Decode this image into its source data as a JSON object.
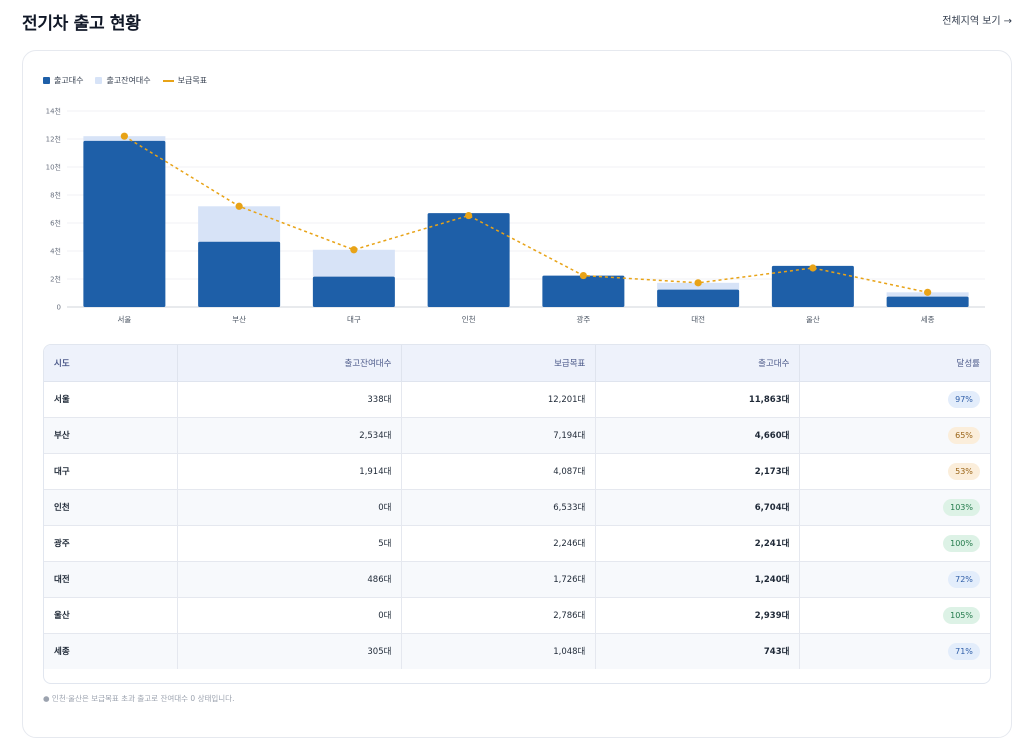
{
  "header": {
    "title": "전기차 출고 현황",
    "view_all": "전체지역 보기",
    "view_all_icon": "arrow-right-icon"
  },
  "legend": [
    {
      "label": "출고대수",
      "color": "#1e5fa8",
      "kind": "bar"
    },
    {
      "label": "출고잔여대수",
      "color": "#d7e3f7",
      "kind": "bar"
    },
    {
      "label": "보급목표",
      "color": "#e8a317",
      "kind": "line"
    }
  ],
  "chart_data": {
    "type": "bar",
    "stacked": true,
    "categories": [
      "서울",
      "부산",
      "대구",
      "인천",
      "광주",
      "대전",
      "울산",
      "세종"
    ],
    "series": [
      {
        "name": "출고대수",
        "type": "bar",
        "color": "#1e5fa8",
        "values": [
          11863,
          4660,
          2173,
          6704,
          2241,
          1240,
          2939,
          743
        ]
      },
      {
        "name": "출고잔여대수",
        "type": "bar",
        "color": "#d7e3f7",
        "values": [
          338,
          2534,
          1914,
          0,
          5,
          486,
          0,
          305
        ]
      },
      {
        "name": "보급목표",
        "type": "line",
        "color": "#e8a317",
        "values": [
          12201,
          7194,
          4087,
          6533,
          2246,
          1726,
          2786,
          1048
        ]
      }
    ],
    "yticks": [
      "0",
      "2천",
      "4천",
      "6천",
      "8천",
      "10천",
      "12천",
      "14천"
    ],
    "ylim": [
      0,
      14000
    ],
    "grid": true,
    "legend_position": "top-left"
  },
  "table": {
    "headers": [
      "시도",
      "출고잔여대수",
      "보급목표",
      "출고대수",
      "달성률"
    ],
    "rows": [
      {
        "name": "서울",
        "remain": "338대",
        "target": "12,201대",
        "shipped": "11,863대",
        "rate": "97%",
        "rate_tone": "blue"
      },
      {
        "name": "부산",
        "remain": "2,534대",
        "target": "7,194대",
        "shipped": "4,660대",
        "rate": "65%",
        "rate_tone": "orange"
      },
      {
        "name": "대구",
        "remain": "1,914대",
        "target": "4,087대",
        "shipped": "2,173대",
        "rate": "53%",
        "rate_tone": "orange"
      },
      {
        "name": "인천",
        "remain": "0대",
        "target": "6,533대",
        "shipped": "6,704대",
        "rate": "103%",
        "rate_tone": "green"
      },
      {
        "name": "광주",
        "remain": "5대",
        "target": "2,246대",
        "shipped": "2,241대",
        "rate": "100%",
        "rate_tone": "green"
      },
      {
        "name": "대전",
        "remain": "486대",
        "target": "1,726대",
        "shipped": "1,240대",
        "rate": "72%",
        "rate_tone": "blue"
      },
      {
        "name": "울산",
        "remain": "0대",
        "target": "2,786대",
        "shipped": "2,939대",
        "rate": "105%",
        "rate_tone": "green"
      },
      {
        "name": "세종",
        "remain": "305대",
        "target": "1,048대",
        "shipped": "743대",
        "rate": "71%",
        "rate_tone": "blue"
      }
    ]
  },
  "badge_colors": {
    "blue": {
      "bg": "#e3edfb",
      "fg": "#2f5ea8"
    },
    "orange": {
      "bg": "#fbeedb",
      "fg": "#9a6416"
    },
    "green": {
      "bg": "#ddf2e6",
      "fg": "#237a4b"
    }
  },
  "footnote": "● 인천·울산은 보급목표 초과 출고로 잔여대수 0 상태입니다."
}
